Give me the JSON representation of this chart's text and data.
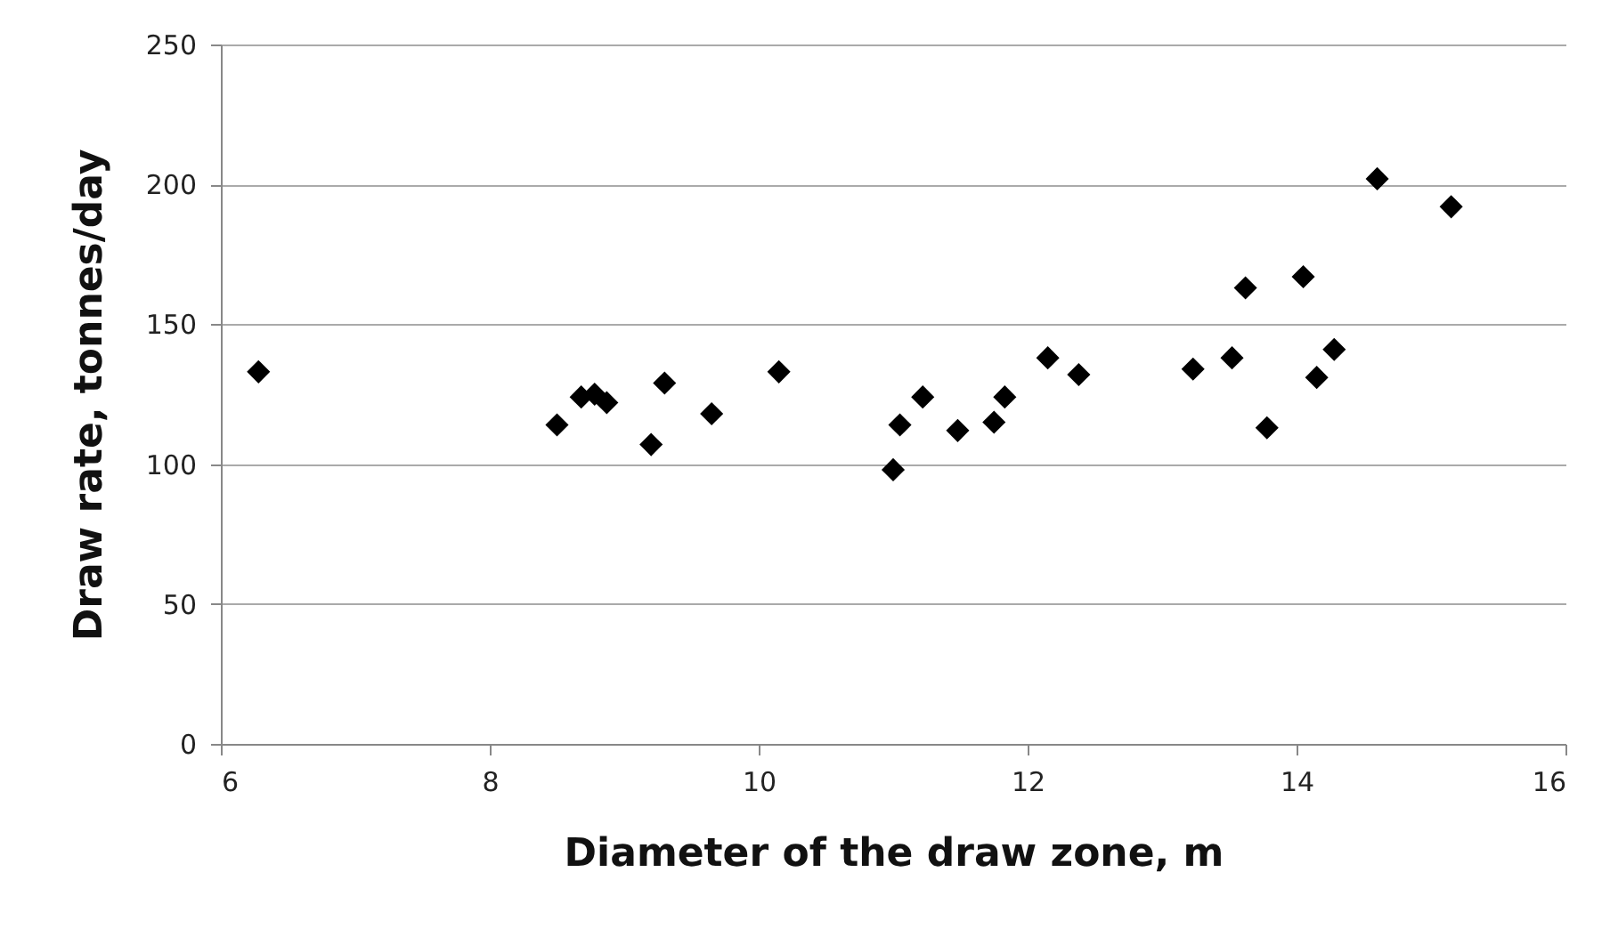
{
  "chart_data": {
    "type": "scatter",
    "xlabel": "Diameter of the draw zone, m",
    "ylabel": "Draw rate, tonnes/day",
    "x": [
      6.28,
      8.5,
      8.68,
      8.78,
      8.87,
      9.2,
      9.3,
      9.65,
      10.15,
      11.0,
      11.05,
      11.22,
      11.48,
      11.75,
      11.83,
      12.15,
      12.38,
      13.23,
      13.52,
      13.62,
      13.78,
      14.05,
      14.15,
      14.28,
      14.6,
      15.15
    ],
    "series": [
      {
        "color": "#000000",
        "values": [
          133,
          114,
          124,
          125,
          122,
          107,
          129,
          118,
          133,
          98,
          114,
          124,
          112,
          115,
          124,
          138,
          132,
          134,
          138,
          163,
          113,
          167,
          131,
          141,
          202,
          192
        ]
      }
    ],
    "xlim": [
      6,
      16
    ],
    "xticks": [
      6,
      8,
      10,
      12,
      14,
      16
    ],
    "ylim": [
      0,
      250
    ],
    "yticks": [
      0,
      50,
      100,
      150,
      200,
      250
    ],
    "grid": "y",
    "marker": "diamond"
  }
}
